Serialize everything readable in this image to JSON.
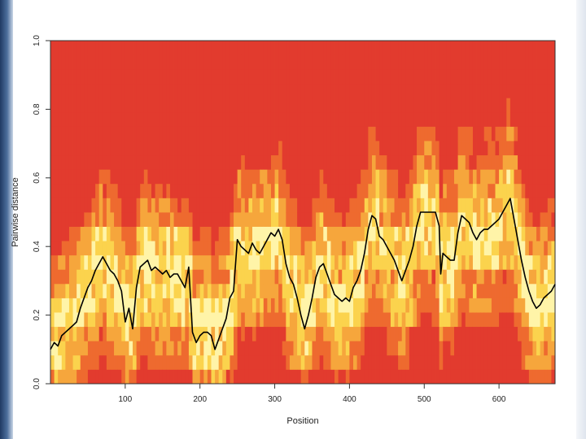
{
  "chart_data": {
    "type": "heatmap",
    "title": "",
    "xlabel": "Position",
    "ylabel": "Pairwise distance",
    "xlim": [
      0,
      675
    ],
    "ylim": [
      0,
      1.0
    ],
    "x_ticks": [
      "100",
      "200",
      "300",
      "400",
      "500",
      "600"
    ],
    "x_tick_values": [
      100,
      200,
      300,
      400,
      500,
      600
    ],
    "y_ticks": [
      "0.0",
      "0.2",
      "0.4",
      "0.6",
      "0.8",
      "1.0"
    ],
    "y_tick_values": [
      0.0,
      0.2,
      0.4,
      0.6,
      0.8,
      1.0
    ],
    "heatmap": {
      "colormap": [
        "#e23b2e",
        "#ee6a2f",
        "#f6a63c",
        "#fbd34d",
        "#fff4a8"
      ],
      "x_columns": 135,
      "y_rows": 24,
      "note_scale": "red = low density, yellow/white = high density"
    },
    "line_series": {
      "color": "#000000",
      "points": [
        [
          0,
          0.1
        ],
        [
          5,
          0.12
        ],
        [
          10,
          0.11
        ],
        [
          15,
          0.14
        ],
        [
          20,
          0.15
        ],
        [
          25,
          0.16
        ],
        [
          30,
          0.17
        ],
        [
          35,
          0.18
        ],
        [
          40,
          0.22
        ],
        [
          45,
          0.25
        ],
        [
          50,
          0.28
        ],
        [
          55,
          0.3
        ],
        [
          60,
          0.33
        ],
        [
          65,
          0.35
        ],
        [
          70,
          0.37
        ],
        [
          75,
          0.35
        ],
        [
          80,
          0.33
        ],
        [
          85,
          0.32
        ],
        [
          90,
          0.3
        ],
        [
          95,
          0.27
        ],
        [
          100,
          0.18
        ],
        [
          105,
          0.22
        ],
        [
          110,
          0.16
        ],
        [
          115,
          0.28
        ],
        [
          120,
          0.34
        ],
        [
          125,
          0.35
        ],
        [
          130,
          0.36
        ],
        [
          135,
          0.33
        ],
        [
          140,
          0.34
        ],
        [
          145,
          0.33
        ],
        [
          150,
          0.32
        ],
        [
          155,
          0.33
        ],
        [
          160,
          0.31
        ],
        [
          165,
          0.32
        ],
        [
          170,
          0.32
        ],
        [
          175,
          0.3
        ],
        [
          180,
          0.28
        ],
        [
          185,
          0.34
        ],
        [
          190,
          0.15
        ],
        [
          195,
          0.12
        ],
        [
          200,
          0.14
        ],
        [
          205,
          0.15
        ],
        [
          210,
          0.15
        ],
        [
          215,
          0.14
        ],
        [
          220,
          0.1
        ],
        [
          225,
          0.13
        ],
        [
          230,
          0.16
        ],
        [
          235,
          0.19
        ],
        [
          240,
          0.25
        ],
        [
          245,
          0.27
        ],
        [
          250,
          0.42
        ],
        [
          255,
          0.4
        ],
        [
          260,
          0.39
        ],
        [
          265,
          0.38
        ],
        [
          270,
          0.41
        ],
        [
          275,
          0.39
        ],
        [
          280,
          0.38
        ],
        [
          285,
          0.4
        ],
        [
          290,
          0.42
        ],
        [
          295,
          0.44
        ],
        [
          300,
          0.43
        ],
        [
          305,
          0.45
        ],
        [
          310,
          0.42
        ],
        [
          315,
          0.35
        ],
        [
          320,
          0.31
        ],
        [
          325,
          0.29
        ],
        [
          330,
          0.25
        ],
        [
          335,
          0.2
        ],
        [
          340,
          0.16
        ],
        [
          345,
          0.2
        ],
        [
          350,
          0.25
        ],
        [
          355,
          0.31
        ],
        [
          360,
          0.34
        ],
        [
          365,
          0.35
        ],
        [
          370,
          0.32
        ],
        [
          375,
          0.29
        ],
        [
          380,
          0.26
        ],
        [
          385,
          0.25
        ],
        [
          390,
          0.24
        ],
        [
          395,
          0.25
        ],
        [
          400,
          0.24
        ],
        [
          405,
          0.28
        ],
        [
          410,
          0.3
        ],
        [
          415,
          0.33
        ],
        [
          420,
          0.38
        ],
        [
          425,
          0.45
        ],
        [
          430,
          0.49
        ],
        [
          435,
          0.48
        ],
        [
          440,
          0.43
        ],
        [
          445,
          0.42
        ],
        [
          450,
          0.4
        ],
        [
          455,
          0.38
        ],
        [
          460,
          0.36
        ],
        [
          465,
          0.33
        ],
        [
          470,
          0.3
        ],
        [
          475,
          0.33
        ],
        [
          480,
          0.36
        ],
        [
          485,
          0.4
        ],
        [
          490,
          0.46
        ],
        [
          495,
          0.5
        ],
        [
          500,
          0.5
        ],
        [
          505,
          0.5
        ],
        [
          510,
          0.5
        ],
        [
          515,
          0.5
        ],
        [
          520,
          0.46
        ],
        [
          522,
          0.32
        ],
        [
          525,
          0.38
        ],
        [
          530,
          0.37
        ],
        [
          535,
          0.36
        ],
        [
          540,
          0.36
        ],
        [
          545,
          0.44
        ],
        [
          550,
          0.49
        ],
        [
          555,
          0.48
        ],
        [
          560,
          0.47
        ],
        [
          565,
          0.44
        ],
        [
          570,
          0.42
        ],
        [
          575,
          0.44
        ],
        [
          580,
          0.45
        ],
        [
          585,
          0.45
        ],
        [
          590,
          0.46
        ],
        [
          595,
          0.47
        ],
        [
          600,
          0.48
        ],
        [
          605,
          0.5
        ],
        [
          610,
          0.52
        ],
        [
          615,
          0.54
        ],
        [
          620,
          0.48
        ],
        [
          625,
          0.42
        ],
        [
          630,
          0.36
        ],
        [
          635,
          0.31
        ],
        [
          640,
          0.27
        ],
        [
          645,
          0.24
        ],
        [
          650,
          0.22
        ],
        [
          655,
          0.23
        ],
        [
          660,
          0.25
        ],
        [
          665,
          0.26
        ],
        [
          670,
          0.27
        ],
        [
          675,
          0.29
        ]
      ]
    },
    "grid": false,
    "legend": "none"
  }
}
